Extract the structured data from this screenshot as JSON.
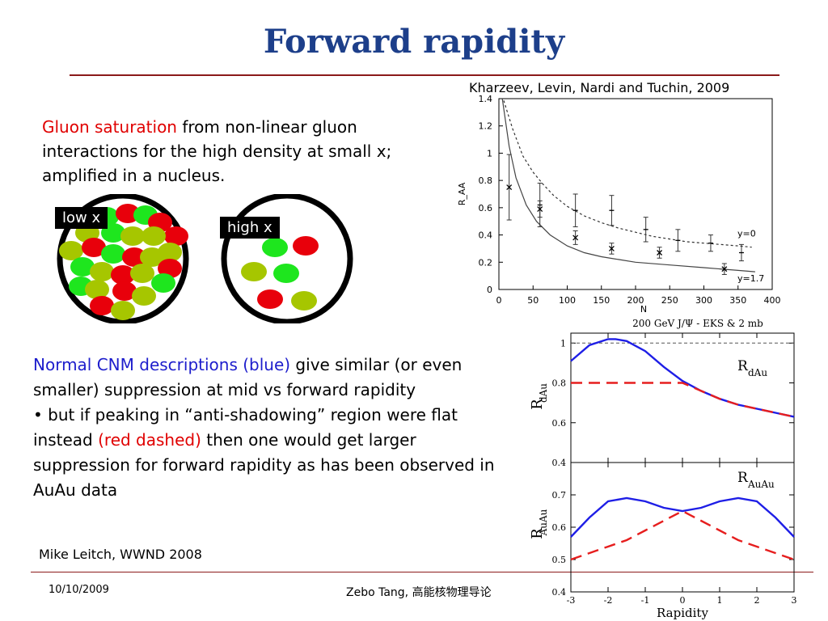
{
  "slide": {
    "title": "Forward rapidity",
    "citation": "Kharzeev, Levin, Nardi and Tuchin, 2009",
    "intro": {
      "highlight": "Gluon saturation",
      "rest": " from non-linear gluon interactions for the high density at small x; amplified in a nucleus."
    },
    "labels": {
      "low_x": "low x",
      "high_x": "high x"
    },
    "body": {
      "part1_blue": "Normal CNM descriptions (blue)",
      "part1_rest": " give similar (or even smaller) suppression at mid vs forward rapidity",
      "part2_start": "• but if peaking in “anti-shadowing” region were flat instead ",
      "part2_red": "(red dashed)",
      "part2_rest": " then one would get larger suppression for forward rapidity as has been observed in AuAu data"
    },
    "author_credit": "Mike Leitch, WWND 2008",
    "footer": {
      "date": "10/10/2009",
      "presenter": "Zebo Tang, ",
      "course": "高能核物理导论"
    }
  },
  "colors": {
    "title": "#1d3f8a",
    "rule": "#8b1a1a",
    "gluon_red": "#e8000b",
    "gluon_green": "#1ee61e",
    "gluon_olive": "#a6c600",
    "model_blue": "#1e1ee6",
    "model_red": "#e61e1e"
  },
  "chart_data": [
    {
      "type": "scatter",
      "title": "",
      "xlabel": "N",
      "ylabel": "R_AA",
      "xlim": [
        0,
        400
      ],
      "ylim": [
        0,
        1.4
      ],
      "x_ticks": [
        "0",
        "50",
        "100",
        "150",
        "200",
        "250",
        "300",
        "350",
        "400"
      ],
      "y_ticks": [
        "0",
        "0.2",
        "0.4",
        "0.6",
        "0.8",
        "1",
        "1.2",
        "1.4"
      ],
      "curve_labels": [
        "y=0",
        "y=1.7"
      ],
      "series": [
        {
          "name": "y=0",
          "style": "dotted",
          "x": [
            5,
            20,
            35,
            50,
            65,
            80,
            100,
            125,
            150,
            175,
            200,
            225,
            250,
            275,
            300,
            325,
            350,
            370
          ],
          "y": [
            1.42,
            1.18,
            0.98,
            0.86,
            0.77,
            0.69,
            0.61,
            0.54,
            0.49,
            0.45,
            0.42,
            0.39,
            0.37,
            0.35,
            0.34,
            0.33,
            0.32,
            0.31
          ]
        },
        {
          "name": "y=1.7",
          "style": "solid",
          "x": [
            5,
            15,
            25,
            40,
            55,
            75,
            100,
            125,
            150,
            175,
            200,
            250,
            300,
            350,
            375
          ],
          "y": [
            1.4,
            1.05,
            0.82,
            0.62,
            0.5,
            0.4,
            0.32,
            0.27,
            0.24,
            0.22,
            0.2,
            0.18,
            0.16,
            0.14,
            0.13
          ]
        }
      ],
      "points_mid": {
        "x": [
          60,
          112,
          165,
          215,
          262,
          310,
          355
        ],
        "y": [
          0.62,
          0.58,
          0.58,
          0.44,
          0.36,
          0.34,
          0.27
        ],
        "err": [
          0.16,
          0.12,
          0.11,
          0.09,
          0.08,
          0.06,
          0.06
        ]
      },
      "points_fwd": {
        "x": [
          15,
          60,
          112,
          165,
          235,
          330
        ],
        "y": [
          0.75,
          0.59,
          0.38,
          0.3,
          0.27,
          0.15
        ],
        "err": [
          0.24,
          0.06,
          0.05,
          0.04,
          0.04,
          0.04
        ]
      }
    },
    {
      "type": "line",
      "title": "200 GeV J/Ψ - EKS & 2 mb",
      "xlim": [
        -3,
        3
      ],
      "ylim": [
        0.4,
        1.05
      ],
      "ylabel_main": "R",
      "ylabel_sub": "dAu",
      "curve_label_main": "R",
      "curve_label_sub": "dAu",
      "y_ticks": [
        "1",
        "0.8",
        "0.6",
        "0.4"
      ],
      "reference_line": 1,
      "series": [
        {
          "name": "blue",
          "x": [
            -3,
            -2.5,
            -2,
            -1.8,
            -1.5,
            -1,
            -0.5,
            0,
            0.5,
            1,
            1.5,
            2,
            2.5,
            3
          ],
          "y": [
            0.91,
            0.99,
            1.02,
            1.02,
            1.01,
            0.96,
            0.88,
            0.81,
            0.76,
            0.72,
            0.69,
            0.67,
            0.65,
            0.63
          ]
        },
        {
          "name": "red dashed",
          "x": [
            -3,
            -2,
            -1,
            -0.5,
            0,
            0.5,
            1,
            1.5,
            2,
            2.5,
            3
          ],
          "y": [
            0.8,
            0.8,
            0.8,
            0.8,
            0.8,
            0.76,
            0.72,
            0.69,
            0.67,
            0.65,
            0.63
          ]
        }
      ]
    },
    {
      "type": "line",
      "xlim": [
        -3,
        3
      ],
      "ylim": [
        0.4,
        0.8
      ],
      "xlabel": "Rapidity",
      "ylabel_main": "R",
      "ylabel_sub": "AuAu",
      "curve_label_main": "R",
      "curve_label_sub": "AuAu",
      "x_ticks": [
        "-3",
        "-2",
        "-1",
        "0",
        "1",
        "2",
        "3"
      ],
      "y_ticks": [
        "0.7",
        "0.6",
        "0.5",
        "0.4"
      ],
      "series": [
        {
          "name": "blue",
          "x": [
            -3,
            -2.5,
            -2,
            -1.5,
            -1,
            -0.5,
            0,
            0.5,
            1,
            1.5,
            2,
            2.5,
            3
          ],
          "y": [
            0.57,
            0.63,
            0.68,
            0.69,
            0.68,
            0.66,
            0.65,
            0.66,
            0.68,
            0.69,
            0.68,
            0.63,
            0.57
          ]
        },
        {
          "name": "red dashed",
          "x": [
            -3,
            -2.5,
            -2,
            -1.5,
            -1,
            -0.5,
            0,
            0.5,
            1,
            1.5,
            2,
            2.5,
            3
          ],
          "y": [
            0.5,
            0.52,
            0.54,
            0.56,
            0.59,
            0.62,
            0.65,
            0.62,
            0.59,
            0.56,
            0.54,
            0.52,
            0.5
          ]
        }
      ]
    }
  ]
}
